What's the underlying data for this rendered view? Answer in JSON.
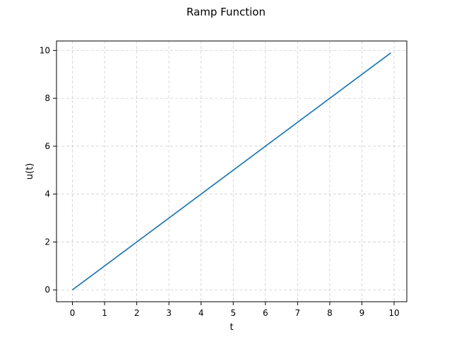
{
  "chart_data": {
    "type": "line",
    "title": "Ramp Function",
    "xlabel": "t",
    "ylabel": "u(t)",
    "xlim": [
      -0.495,
      10.395
    ],
    "ylim": [
      -0.495,
      10.395
    ],
    "xticks": [
      0,
      1,
      2,
      3,
      4,
      5,
      6,
      7,
      8,
      9,
      10
    ],
    "yticks": [
      0,
      2,
      4,
      6,
      8,
      10
    ],
    "grid": true,
    "grid_style": "dashed",
    "legend": "none",
    "series": [
      {
        "color": "#1f77b4",
        "x": [
          0,
          9.9
        ],
        "y": [
          0,
          9.9
        ]
      }
    ]
  }
}
